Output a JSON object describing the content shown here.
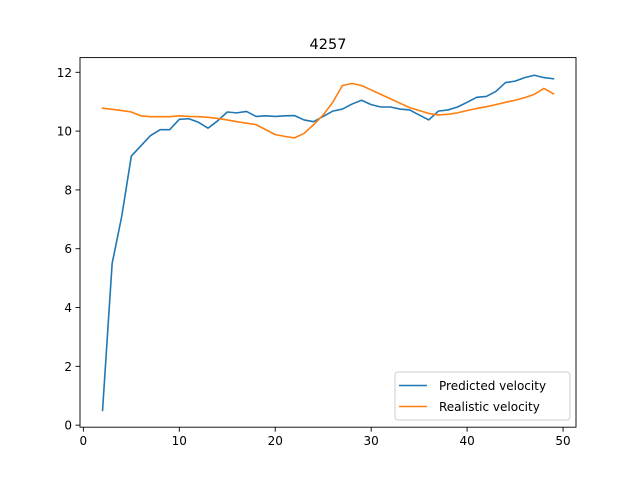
{
  "chart_data": {
    "type": "line",
    "title": "4257",
    "xlabel": "",
    "ylabel": "",
    "xlim": [
      -0.35,
      51.35
    ],
    "ylim": [
      -0.07,
      12.5
    ],
    "xticks": [
      0,
      10,
      20,
      30,
      40,
      50
    ],
    "yticks": [
      0,
      2,
      4,
      6,
      8,
      10,
      12
    ],
    "grid": false,
    "legend_position": "lower-right",
    "x": [
      2,
      3,
      4,
      5,
      6,
      7,
      8,
      9,
      10,
      11,
      12,
      13,
      14,
      15,
      16,
      17,
      18,
      19,
      20,
      21,
      22,
      23,
      24,
      25,
      26,
      27,
      28,
      29,
      30,
      31,
      32,
      33,
      34,
      35,
      36,
      37,
      38,
      39,
      40,
      41,
      42,
      43,
      44,
      45,
      46,
      47,
      48,
      49
    ],
    "series": [
      {
        "name": "Predicted velocity",
        "color": "#1f77b4",
        "values": [
          0.5,
          5.5,
          7.1,
          9.15,
          9.5,
          9.85,
          10.05,
          10.05,
          10.4,
          10.42,
          10.3,
          10.1,
          10.35,
          10.65,
          10.62,
          10.67,
          10.5,
          10.52,
          10.5,
          10.52,
          10.53,
          10.38,
          10.32,
          10.5,
          10.68,
          10.75,
          10.92,
          11.05,
          10.9,
          10.82,
          10.82,
          10.75,
          10.72,
          10.55,
          10.38,
          10.68,
          10.72,
          10.82,
          10.98,
          11.15,
          11.18,
          11.35,
          11.65,
          11.7,
          11.82,
          11.9,
          11.82,
          11.78
        ]
      },
      {
        "name": "Realistic velocity",
        "color": "#ff7f0e",
        "values": [
          10.78,
          10.74,
          10.7,
          10.65,
          10.52,
          10.49,
          10.49,
          10.49,
          10.52,
          10.5,
          10.49,
          10.47,
          10.43,
          10.38,
          10.32,
          10.27,
          10.22,
          10.05,
          9.88,
          9.82,
          9.77,
          9.92,
          10.22,
          10.55,
          10.98,
          11.55,
          11.62,
          11.55,
          11.4,
          11.25,
          11.1,
          10.95,
          10.8,
          10.7,
          10.6,
          10.55,
          10.57,
          10.62,
          10.7,
          10.77,
          10.83,
          10.9,
          10.98,
          11.05,
          11.14,
          11.25,
          11.45,
          11.27
        ]
      }
    ]
  }
}
